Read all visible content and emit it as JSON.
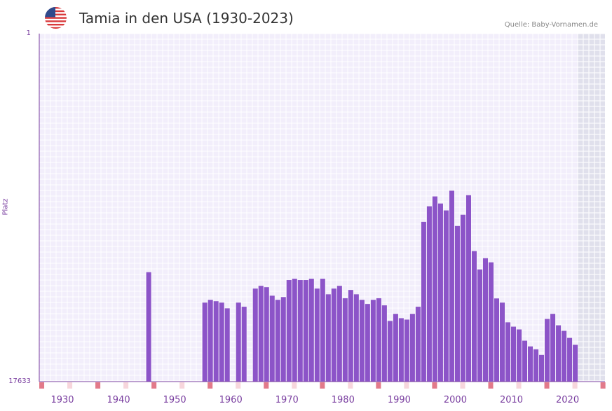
{
  "header": {
    "title": "Tamia in den USA (1930-2023)",
    "source": "Quelle: Baby-Vornamen.de"
  },
  "colors": {
    "bar": "#8c54c8",
    "background": "#f2eefb",
    "grid": "#ffffff",
    "axis": "#7a3fa0",
    "tick_label": "#7a3fa0",
    "highlight": "#e0e0ec",
    "marker_dark": "#e27a8a",
    "marker_light": "#f7d6dc"
  },
  "chart_data": {
    "type": "bar",
    "title": "Tamia in den USA (1930-2023)",
    "xlabel": "",
    "ylabel": "Platz",
    "y_axis_top_label": "1",
    "y_axis_bottom_label": "17633",
    "ylim_rank": [
      1,
      17633
    ],
    "x_tick_labels": [
      "1930",
      "1940",
      "1950",
      "1960",
      "1970",
      "1980",
      "1990",
      "2000",
      "2010",
      "2020"
    ],
    "years": [
      1945,
      1955,
      1956,
      1957,
      1958,
      1959,
      1961,
      1962,
      1964,
      1965,
      1966,
      1967,
      1968,
      1969,
      1970,
      1971,
      1972,
      1973,
      1974,
      1975,
      1976,
      1977,
      1978,
      1979,
      1980,
      1981,
      1982,
      1983,
      1984,
      1985,
      1986,
      1987,
      1988,
      1989,
      1990,
      1991,
      1992,
      1993,
      1994,
      1995,
      1996,
      1997,
      1998,
      1999,
      2000,
      2001,
      2002,
      2003,
      2004,
      2005,
      2006,
      2007,
      2008,
      2009,
      2010,
      2011,
      2012,
      2013,
      2014,
      2015,
      2016,
      2017,
      2018,
      2019,
      2020,
      2021
    ],
    "ranks": [
      12090,
      13630,
      13490,
      13560,
      13630,
      13920,
      13630,
      13840,
      12920,
      12780,
      12850,
      13280,
      13490,
      13350,
      12490,
      12420,
      12490,
      12490,
      12420,
      12920,
      12420,
      13210,
      12920,
      12780,
      13410,
      12990,
      13210,
      13490,
      13700,
      13490,
      13410,
      13770,
      14560,
      14200,
      14420,
      14490,
      14200,
      13840,
      9540,
      8750,
      8250,
      8610,
      8960,
      7960,
      9750,
      9180,
      8190,
      11020,
      11950,
      11380,
      11590,
      13420,
      13630,
      14630,
      14850,
      14990,
      15560,
      15850,
      16000,
      16280,
      14460,
      14200,
      14780,
      15060,
      15420,
      15770
    ],
    "highlight_range": [
      2022,
      2023
    ]
  }
}
